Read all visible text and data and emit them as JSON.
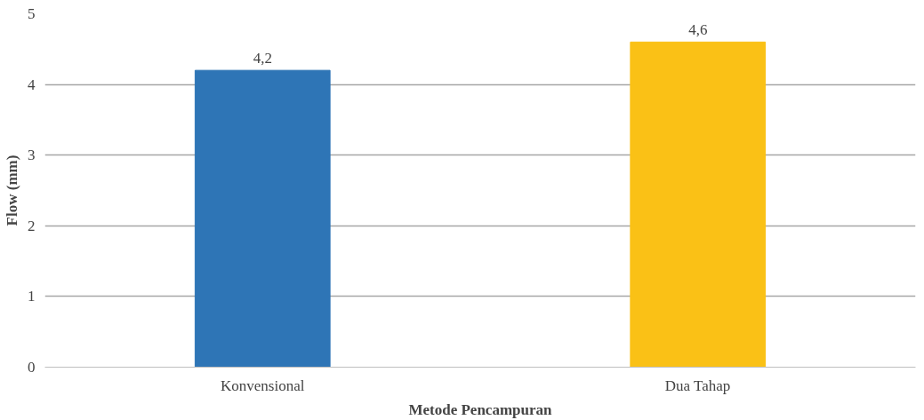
{
  "chart_data": {
    "type": "bar",
    "xlabel": "Metode Pencampuran",
    "ylabel": "Flow (mm)",
    "categories": [
      "Konvensional",
      "Dua Tahap"
    ],
    "values": [
      4.2,
      4.6
    ],
    "colors": [
      "#2e75b6",
      "#fac116"
    ],
    "value_labels": [
      "4,2",
      "4,6"
    ],
    "ylim": [
      0,
      5
    ],
    "yticks": [
      0,
      1,
      2,
      3,
      4,
      5
    ],
    "grid": "y"
  }
}
